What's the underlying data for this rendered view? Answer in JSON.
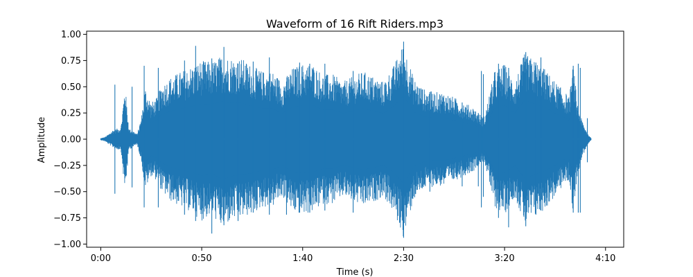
{
  "chart_data": {
    "type": "line",
    "title": "Waveform of 16 Rift Riders.mp3",
    "xlabel": "Time (s)",
    "ylabel": "Amplitude",
    "xlim": [
      -7,
      259
    ],
    "ylim": [
      -1.03,
      1.03
    ],
    "grid": false,
    "x_ticks": [
      {
        "value": 0,
        "label": "0:00"
      },
      {
        "value": 50,
        "label": "0:50"
      },
      {
        "value": 100,
        "label": "1:40"
      },
      {
        "value": 150,
        "label": "2:30"
      },
      {
        "value": 200,
        "label": "3:20"
      },
      {
        "value": 250,
        "label": "4:10"
      }
    ],
    "y_ticks": [
      {
        "value": 1.0,
        "label": "1.00"
      },
      {
        "value": 0.75,
        "label": "0.75"
      },
      {
        "value": 0.5,
        "label": "0.50"
      },
      {
        "value": 0.25,
        "label": "0.25"
      },
      {
        "value": 0.0,
        "label": "0.00"
      },
      {
        "value": -0.25,
        "label": "−0.25"
      },
      {
        "value": -0.5,
        "label": "−0.50"
      },
      {
        "value": -0.75,
        "label": "−0.75"
      },
      {
        "value": -1.0,
        "label": "−1.00"
      }
    ],
    "series": [
      {
        "color": "#1f77b4",
        "envelope": {
          "t": [
            0,
            2,
            4,
            6,
            8,
            10,
            12,
            14,
            16,
            18,
            20,
            22,
            25,
            28,
            30,
            35,
            40,
            45,
            50,
            55,
            60,
            65,
            70,
            75,
            80,
            85,
            90,
            95,
            100,
            105,
            110,
            115,
            120,
            125,
            130,
            135,
            140,
            145,
            150,
            155,
            160,
            165,
            170,
            175,
            180,
            185,
            187,
            189,
            190,
            195,
            200,
            205,
            210,
            215,
            220,
            225,
            230,
            232,
            234,
            236,
            238,
            240,
            242,
            243
          ],
          "max": [
            0.01,
            0.02,
            0.05,
            0.09,
            0.1,
            0.12,
            0.52,
            0.1,
            0.08,
            0.05,
            0.2,
            0.5,
            0.35,
            0.4,
            0.52,
            0.6,
            0.65,
            0.7,
            0.75,
            0.74,
            0.8,
            0.78,
            0.77,
            0.7,
            0.65,
            0.65,
            0.55,
            0.68,
            0.72,
            0.72,
            0.62,
            0.62,
            0.55,
            0.6,
            0.65,
            0.6,
            0.55,
            0.7,
            0.92,
            0.58,
            0.48,
            0.45,
            0.45,
            0.4,
            0.35,
            0.3,
            0.25,
            0.22,
            0.22,
            0.65,
            0.72,
            0.55,
            0.82,
            0.75,
            0.67,
            0.55,
            0.45,
            0.4,
            0.72,
            0.35,
            0.2,
            0.1,
            0.03,
            0.01
          ],
          "min": [
            -0.01,
            -0.02,
            -0.05,
            -0.08,
            -0.1,
            -0.1,
            -0.52,
            -0.1,
            -0.08,
            -0.05,
            -0.2,
            -0.48,
            -0.35,
            -0.4,
            -0.5,
            -0.6,
            -0.65,
            -0.7,
            -0.78,
            -0.72,
            -0.85,
            -0.78,
            -0.75,
            -0.72,
            -0.65,
            -0.65,
            -0.55,
            -0.7,
            -0.72,
            -0.7,
            -0.62,
            -0.62,
            -0.55,
            -0.6,
            -0.65,
            -0.6,
            -0.55,
            -0.7,
            -0.94,
            -0.58,
            -0.48,
            -0.45,
            -0.45,
            -0.4,
            -0.35,
            -0.3,
            -0.25,
            -0.22,
            -0.22,
            -0.65,
            -0.72,
            -0.55,
            -0.82,
            -0.75,
            -0.67,
            -0.55,
            -0.42,
            -0.4,
            -0.72,
            -0.35,
            -0.2,
            -0.1,
            -0.03,
            -0.01
          ]
        },
        "spikes": [
          {
            "t": 7,
            "max": 0.52,
            "min": -0.52
          },
          {
            "t": 15.5,
            "max": 0.5,
            "min": -0.46
          },
          {
            "t": 21.5,
            "max": 0.7,
            "min": -0.65
          },
          {
            "t": 28.5,
            "max": 0.68,
            "min": -0.65
          },
          {
            "t": 41.5,
            "max": 0.75,
            "min": -0.72
          },
          {
            "t": 47,
            "max": 0.89,
            "min": -0.78
          },
          {
            "t": 55,
            "max": 0.77,
            "min": -0.9
          },
          {
            "t": 61,
            "max": 0.88,
            "min": -0.82
          },
          {
            "t": 68,
            "max": 0.72,
            "min": -0.78
          },
          {
            "t": 75.5,
            "max": 0.74,
            "min": -0.7
          },
          {
            "t": 83.5,
            "max": 0.78,
            "min": -0.72
          },
          {
            "t": 92,
            "max": 0.55,
            "min": -0.72
          },
          {
            "t": 98.5,
            "max": 0.73,
            "min": -0.7
          },
          {
            "t": 103.5,
            "max": 0.72,
            "min": -0.7
          },
          {
            "t": 111,
            "max": 0.72,
            "min": -0.68
          },
          {
            "t": 125,
            "max": 0.65,
            "min": -0.7
          },
          {
            "t": 150,
            "max": 0.93,
            "min": -0.94
          },
          {
            "t": 163,
            "max": 0.45,
            "min": -0.5
          },
          {
            "t": 179,
            "max": 0.35,
            "min": -0.45
          },
          {
            "t": 187,
            "max": 0.25,
            "min": -0.45
          },
          {
            "t": 188.5,
            "max": 0.65,
            "min": -0.65
          },
          {
            "t": 189.5,
            "max": 0.62,
            "min": -0.55
          },
          {
            "t": 197,
            "max": 0.72,
            "min": -0.75
          },
          {
            "t": 202,
            "max": 0.68,
            "min": -0.84
          },
          {
            "t": 210.5,
            "max": 0.83,
            "min": -0.83
          },
          {
            "t": 215.5,
            "max": 0.73,
            "min": -0.72
          },
          {
            "t": 218,
            "max": 0.78,
            "min": -0.68
          },
          {
            "t": 234,
            "max": 0.7,
            "min": -0.7
          },
          {
            "t": 236.5,
            "max": 0.72,
            "min": -0.7
          },
          {
            "t": 237.5,
            "max": 0.68,
            "min": -0.7
          },
          {
            "t": 241,
            "max": 0.2,
            "min": -0.22
          }
        ]
      }
    ]
  }
}
